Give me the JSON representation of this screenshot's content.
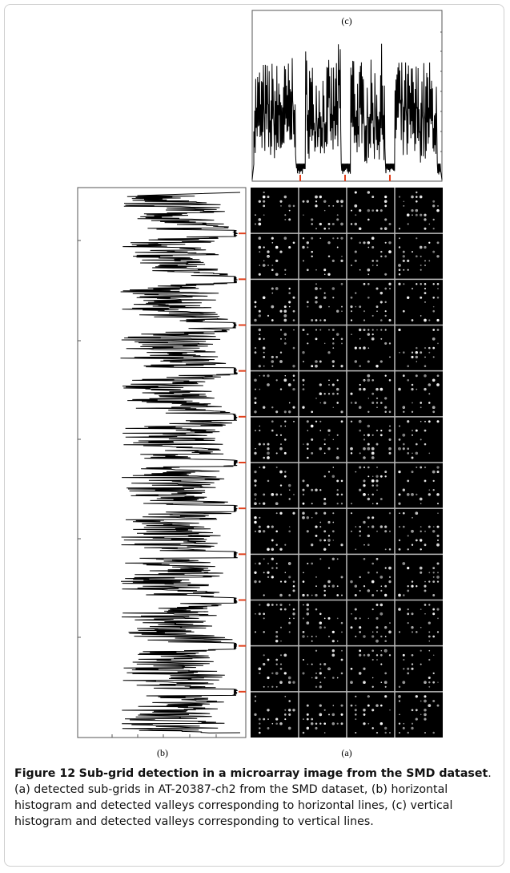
{
  "panels": {
    "a": {
      "label": "(a)"
    },
    "b": {
      "label": "(b)"
    },
    "c": {
      "label": "(c)"
    }
  },
  "caption": {
    "label": "Figure 12",
    "title": "Sub-grid detection in a microarray image from the SMD dataset",
    "text": ". (a) detected sub-grids in AT-20387-ch2 from the SMD dataset, (b) horizontal histogram and detected valleys corresponding to horizontal lines, (c) vertical histogram and detected valleys corresponding to vertical lines."
  }
}
